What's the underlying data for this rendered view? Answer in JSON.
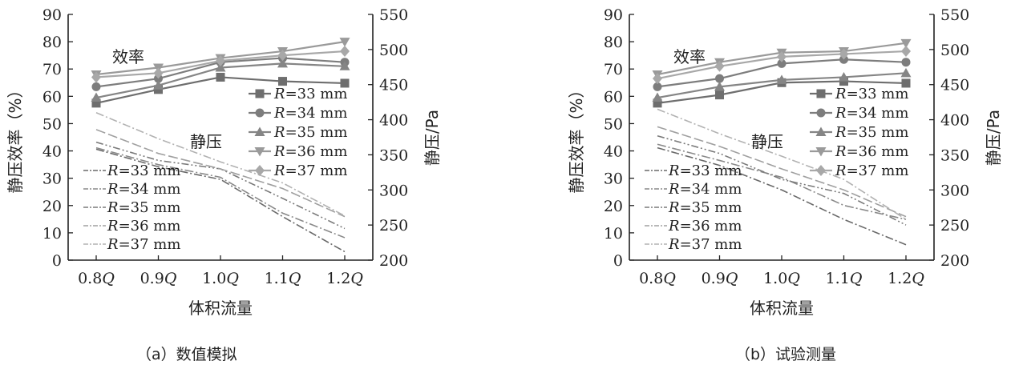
{
  "chart_data": [
    {
      "type": "line",
      "caption": "（a）数值模拟",
      "xlabel": "体积流量",
      "ylabel": "静压效率（%）",
      "ylabel_right": "静压/Pa",
      "categories": [
        "0.8Q",
        "0.9Q",
        "1.0Q",
        "1.1Q",
        "1.2Q"
      ],
      "ylim": [
        0,
        90
      ],
      "yticks": [
        0,
        10,
        20,
        30,
        40,
        50,
        60,
        70,
        80,
        90
      ],
      "ylim_right": [
        200,
        550
      ],
      "yticks_right": [
        200,
        250,
        300,
        350,
        400,
        450,
        500,
        550
      ],
      "annotations": {
        "efficiency": "效率",
        "pressure": "静压"
      },
      "efficiency_series": [
        {
          "name": "R=33 mm",
          "marker": "square",
          "color": "#6e6e6e",
          "values": [
            57.5,
            62.5,
            67.0,
            65.5,
            64.8
          ]
        },
        {
          "name": "R=34 mm",
          "marker": "circle",
          "color": "#7d7d7d",
          "values": [
            63.5,
            66.5,
            72.5,
            74.0,
            72.5
          ]
        },
        {
          "name": "R=35 mm",
          "marker": "triangle-up",
          "color": "#858585",
          "values": [
            59.5,
            64.0,
            70.5,
            72.0,
            71.0
          ]
        },
        {
          "name": "R=36 mm",
          "marker": "triangle-down",
          "color": "#9a9a9a",
          "values": [
            68.0,
            70.5,
            74.0,
            76.5,
            80.0
          ]
        },
        {
          "name": "R=37 mm",
          "marker": "diamond",
          "color": "#a8a8a8",
          "values": [
            67.0,
            68.5,
            73.0,
            75.0,
            76.5
          ]
        }
      ],
      "pressure_series": [
        {
          "name": "R=33 mm",
          "color": "#6a6a6a",
          "values": [
            358,
            333,
            315,
            262,
            212
          ]
        },
        {
          "name": "R=34 mm",
          "color": "#8a8a8a",
          "values": [
            360,
            336,
            318,
            267,
            232
          ]
        },
        {
          "name": "R=35 mm",
          "color": "#7a7a7a",
          "values": [
            368,
            342,
            330,
            288,
            245
          ]
        },
        {
          "name": "R=36 mm",
          "color": "#a0a0a0",
          "values": [
            386,
            352,
            330,
            302,
            262
          ]
        },
        {
          "name": "R=37 mm",
          "color": "#b2b2b2",
          "values": [
            410,
            373,
            340,
            310,
            263
          ]
        }
      ]
    },
    {
      "type": "line",
      "caption": "（b）试验测量",
      "xlabel": "体积流量",
      "ylabel": "静压效率（%）",
      "ylabel_right": "静压/Pa",
      "categories": [
        "0.8Q",
        "0.9Q",
        "1.0Q",
        "1.1Q",
        "1.2Q"
      ],
      "ylim": [
        0,
        90
      ],
      "yticks": [
        0,
        10,
        20,
        30,
        40,
        50,
        60,
        70,
        80,
        90
      ],
      "ylim_right": [
        200,
        550
      ],
      "yticks_right": [
        200,
        250,
        300,
        350,
        400,
        450,
        500,
        550
      ],
      "annotations": {
        "efficiency": "效率",
        "pressure": "静压"
      },
      "efficiency_series": [
        {
          "name": "R=33 mm",
          "marker": "square",
          "color": "#6e6e6e",
          "values": [
            57.5,
            60.5,
            65.0,
            65.5,
            64.8
          ]
        },
        {
          "name": "R=34 mm",
          "marker": "circle",
          "color": "#7d7d7d",
          "values": [
            63.5,
            66.5,
            72.0,
            73.5,
            72.5
          ]
        },
        {
          "name": "R=35 mm",
          "marker": "triangle-up",
          "color": "#858585",
          "values": [
            59.5,
            63.5,
            66.0,
            67.0,
            68.5
          ]
        },
        {
          "name": "R=36 mm",
          "marker": "triangle-down",
          "color": "#9a9a9a",
          "values": [
            68.0,
            72.5,
            76.0,
            76.5,
            79.5
          ]
        },
        {
          "name": "R=37 mm",
          "marker": "diamond",
          "color": "#a8a8a8",
          "values": [
            66.5,
            71.0,
            74.5,
            75.5,
            76.5
          ]
        }
      ],
      "pressure_series": [
        {
          "name": "R=33 mm",
          "color": "#6a6a6a",
          "values": [
            360,
            335,
            300,
            258,
            222
          ]
        },
        {
          "name": "R=34 mm",
          "color": "#8a8a8a",
          "values": [
            365,
            342,
            318,
            278,
            258
          ]
        },
        {
          "name": "R=35 mm",
          "color": "#7a7a7a",
          "values": [
            377,
            352,
            315,
            295,
            250
          ]
        },
        {
          "name": "R=36 mm",
          "color": "#a0a0a0",
          "values": [
            390,
            362,
            330,
            300,
            262
          ]
        },
        {
          "name": "R=37 mm",
          "color": "#b2b2b2",
          "values": [
            415,
            380,
            348,
            315,
            258
          ]
        }
      ]
    }
  ]
}
